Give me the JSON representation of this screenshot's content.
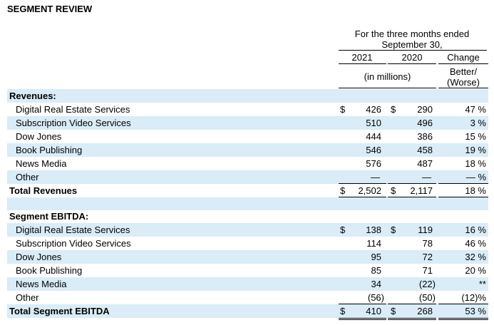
{
  "title": "SEGMENT REVIEW",
  "header": {
    "period_line1": "For the three months ended",
    "period_line2": "September 30,",
    "col_2021": "2021",
    "col_2020": "2020",
    "col_change": "Change",
    "units": "(in millions)",
    "better_worse_1": "Better/",
    "better_worse_2": "(Worse)"
  },
  "revenues": {
    "heading": "Revenues:",
    "rows": [
      {
        "label": "Digital Real Estate Services",
        "d2021": "$",
        "v2021": "426",
        "d2020": "$",
        "v2020": "290",
        "change": "47 %"
      },
      {
        "label": "Subscription Video Services",
        "d2021": "",
        "v2021": "510",
        "d2020": "",
        "v2020": "496",
        "change": "3 %"
      },
      {
        "label": "Dow Jones",
        "d2021": "",
        "v2021": "444",
        "d2020": "",
        "v2020": "386",
        "change": "15 %"
      },
      {
        "label": "Book Publishing",
        "d2021": "",
        "v2021": "546",
        "d2020": "",
        "v2020": "458",
        "change": "19 %"
      },
      {
        "label": "News Media",
        "d2021": "",
        "v2021": "576",
        "d2020": "",
        "v2020": "487",
        "change": "18 %"
      },
      {
        "label": "Other",
        "d2021": "",
        "v2021": "—",
        "d2020": "",
        "v2020": "—",
        "change": "— %"
      }
    ],
    "total": {
      "label": "Total Revenues",
      "d2021": "$",
      "v2021": "2,502",
      "d2020": "$",
      "v2020": "2,117",
      "change": "18 %"
    }
  },
  "ebitda": {
    "heading": "Segment EBITDA:",
    "rows": [
      {
        "label": "Digital Real Estate Services",
        "d2021": "$",
        "v2021": "138",
        "d2020": "$",
        "v2020": "119",
        "change": "16 %"
      },
      {
        "label": "Subscription Video Services",
        "d2021": "",
        "v2021": "114",
        "d2020": "",
        "v2020": "78",
        "change": "46 %"
      },
      {
        "label": "Dow Jones",
        "d2021": "",
        "v2021": "95",
        "d2020": "",
        "v2020": "72",
        "change": "32 %"
      },
      {
        "label": "Book Publishing",
        "d2021": "",
        "v2021": "85",
        "d2020": "",
        "v2020": "71",
        "change": "20 %"
      },
      {
        "label": "News Media",
        "d2021": "",
        "v2021": "34",
        "d2020": "",
        "v2020": "(22)",
        "change": "**"
      },
      {
        "label": "Other",
        "d2021": "",
        "v2021": "(56)",
        "d2020": "",
        "v2020": "(50)",
        "change": "(12)%"
      }
    ],
    "total": {
      "label": "Total Segment EBITDA",
      "d2021": "$",
      "v2021": "410",
      "d2020": "$",
      "v2020": "268",
      "change": "53 %"
    }
  },
  "colors": {
    "row_shade": "#d9ecf8"
  }
}
